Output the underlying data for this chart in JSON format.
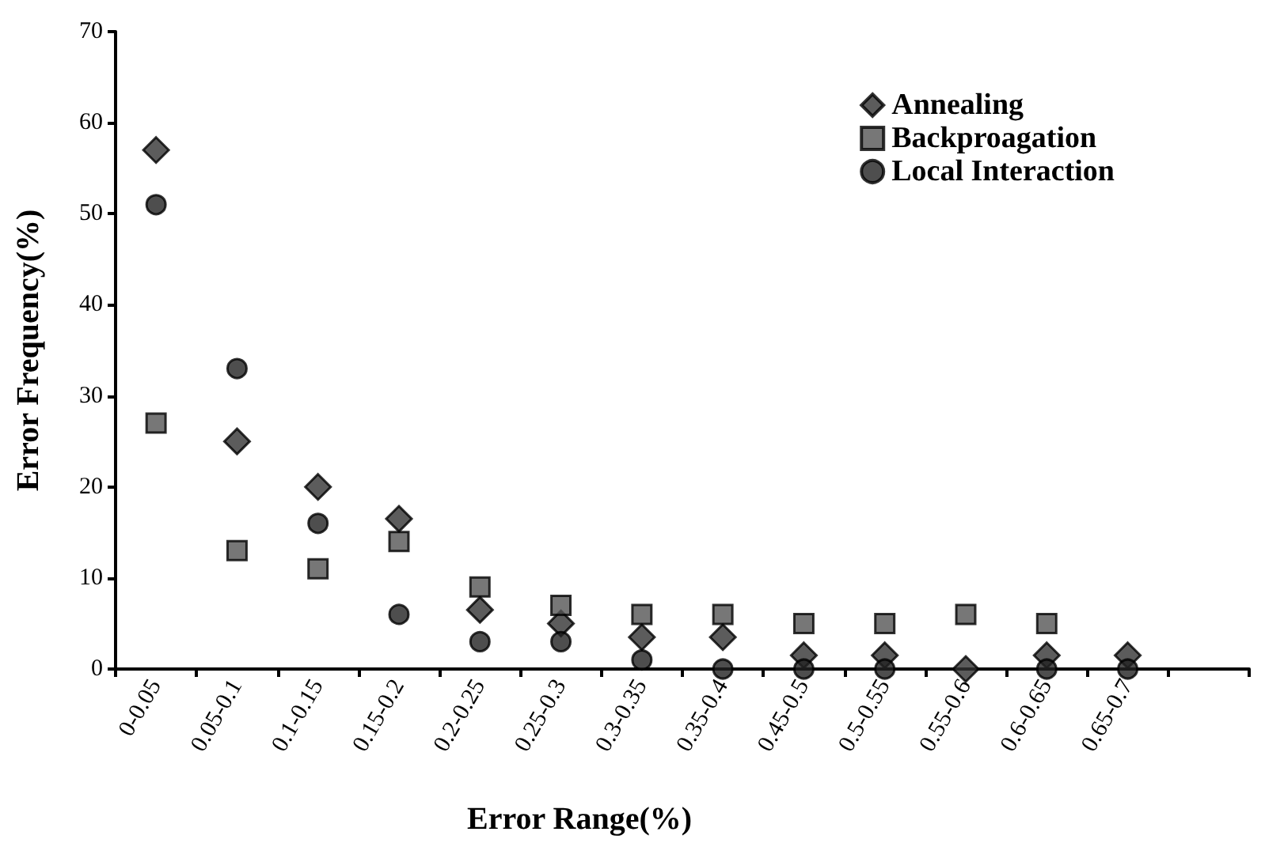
{
  "chart_data": {
    "type": "scatter",
    "xlabel": "Error Range(%)",
    "ylabel": "Error Frequency(%)",
    "categories": [
      "0-0.05",
      "0.05-0.1",
      "0.1-0.15",
      "0.15-0.2",
      "0.2-0.25",
      "0.25-0.3",
      "0.3-0.35",
      "0.35-0.4",
      "0.45-0.5",
      "0.5-0.55",
      "0.55-0.6",
      "0.6-0.65",
      "0.65-0.7",
      null
    ],
    "series": [
      {
        "name": "Annealing",
        "color": "#333333",
        "marker": "diamond",
        "values": [
          57,
          25,
          20,
          16.5,
          6.5,
          5,
          3.5,
          3.5,
          1.5,
          1.5,
          0,
          1.5,
          1.5,
          null
        ]
      },
      {
        "name": "Backproagation",
        "color": "#555555",
        "marker": "square",
        "values": [
          27,
          13,
          11,
          14,
          9,
          7,
          6,
          6,
          5,
          5,
          6,
          5,
          null,
          null
        ]
      },
      {
        "name": "Local Interaction",
        "color": "#222222",
        "marker": "circle",
        "values": [
          51,
          33,
          16,
          6,
          3,
          3,
          1,
          0,
          0,
          0,
          null,
          0,
          0,
          null
        ]
      }
    ],
    "ylim": [
      0,
      70
    ],
    "yticks": [
      0,
      10,
      20,
      30,
      40,
      50,
      60,
      70
    ],
    "grid": false,
    "legend": "top right"
  }
}
